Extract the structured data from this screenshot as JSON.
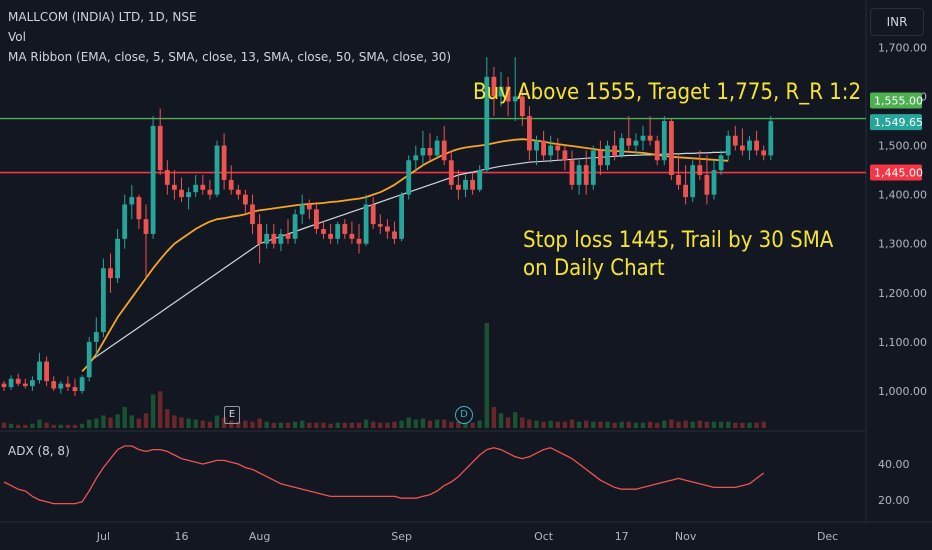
{
  "header": {
    "title": "MALLCOM (INDIA) LTD, 1D, NSE",
    "vol_label": "Vol",
    "ma_label": "MA Ribbon (EMA, close, 5, SMA, close, 13, SMA, close, 50, SMA, close, 30)",
    "currency": "INR"
  },
  "annotations": {
    "buy": "Buy Above 1555, Traget 1,775, R_R 1:2",
    "stop_line1": "Stop loss 1445, Trail by 30 SMA",
    "stop_line2": "on Daily Chart"
  },
  "events": {
    "earnings": "E",
    "dividend": "D"
  },
  "price_tags": {
    "upper": "1,555.00",
    "current": "1,549.65",
    "stop": "1,445.00"
  },
  "colors": {
    "up": "#26a69a",
    "down": "#ef5350",
    "ema": "#f5a623",
    "sma": "#d1d4dc",
    "adx": "#ef5350",
    "buy_line": "#4caf50",
    "stop_line": "#f23645",
    "annotation": "#f5e430"
  },
  "chart_data": [
    {
      "type": "candlestick",
      "name": "price",
      "y_axis_ticks": [
        1000,
        1100,
        1200,
        1300,
        1400,
        1500,
        1600,
        1700
      ],
      "y_axis_labels": [
        "1,000.00",
        "1,100.00",
        "1,200.00",
        "1,300.00",
        "1,400.00",
        "1,500.00",
        "1,600.00",
        "1,700.00"
      ],
      "ylim": [
        950,
        1750
      ],
      "x_axis_labels": [
        "Jul",
        "16",
        "Aug",
        "Sep",
        "Oct",
        "17",
        "Nov",
        "Dec"
      ],
      "x_axis_label_index": [
        14,
        25,
        36,
        56,
        76,
        87,
        96,
        116
      ],
      "horizontal_lines": [
        1555,
        1445
      ],
      "ohlc": [
        [
          1015,
          1020,
          1000,
          1008
        ],
        [
          1008,
          1032,
          1002,
          1025
        ],
        [
          1025,
          1035,
          1010,
          1015
        ],
        [
          1015,
          1025,
          1005,
          1010
        ],
        [
          1010,
          1030,
          1000,
          1022
        ],
        [
          1022,
          1078,
          1015,
          1060
        ],
        [
          1060,
          1070,
          1010,
          1020
        ],
        [
          1020,
          1030,
          1000,
          1005
        ],
        [
          1005,
          1020,
          995,
          1015
        ],
        [
          1015,
          1030,
          1000,
          1008
        ],
        [
          1008,
          1025,
          990,
          1000
        ],
        [
          1000,
          1032,
          995,
          1028
        ],
        [
          1028,
          1110,
          1020,
          1100
        ],
        [
          1100,
          1150,
          1070,
          1120
        ],
        [
          1120,
          1270,
          1110,
          1250
        ],
        [
          1250,
          1280,
          1200,
          1230
        ],
        [
          1230,
          1330,
          1220,
          1310
        ],
        [
          1310,
          1400,
          1290,
          1380
        ],
        [
          1380,
          1420,
          1350,
          1395
        ],
        [
          1395,
          1400,
          1330,
          1350
        ],
        [
          1350,
          1380,
          1230,
          1320
        ],
        [
          1320,
          1560,
          1310,
          1540
        ],
        [
          1540,
          1575,
          1440,
          1450
        ],
        [
          1450,
          1470,
          1400,
          1420
        ],
        [
          1420,
          1450,
          1390,
          1410
        ],
        [
          1410,
          1435,
          1385,
          1395
        ],
        [
          1395,
          1415,
          1370,
          1405
        ],
        [
          1405,
          1440,
          1395,
          1420
        ],
        [
          1420,
          1440,
          1400,
          1410
        ],
        [
          1410,
          1430,
          1390,
          1400
        ],
        [
          1400,
          1510,
          1395,
          1500
        ],
        [
          1500,
          1525,
          1410,
          1430
        ],
        [
          1430,
          1460,
          1400,
          1410
        ],
        [
          1410,
          1420,
          1390,
          1400
        ],
        [
          1400,
          1410,
          1360,
          1380
        ],
        [
          1380,
          1400,
          1320,
          1340
        ],
        [
          1340,
          1360,
          1260,
          1300
        ],
        [
          1300,
          1340,
          1290,
          1320
        ],
        [
          1320,
          1340,
          1290,
          1300
        ],
        [
          1300,
          1330,
          1285,
          1320
        ],
        [
          1320,
          1350,
          1300,
          1310
        ],
        [
          1310,
          1370,
          1300,
          1360
        ],
        [
          1360,
          1400,
          1340,
          1380
        ],
        [
          1380,
          1390,
          1350,
          1370
        ],
        [
          1370,
          1385,
          1320,
          1330
        ],
        [
          1330,
          1345,
          1310,
          1320
        ],
        [
          1320,
          1340,
          1300,
          1310
        ],
        [
          1310,
          1345,
          1300,
          1340
        ],
        [
          1340,
          1350,
          1310,
          1320
        ],
        [
          1320,
          1345,
          1300,
          1310
        ],
        [
          1310,
          1340,
          1280,
          1300
        ],
        [
          1300,
          1400,
          1295,
          1380
        ],
        [
          1380,
          1395,
          1330,
          1340
        ],
        [
          1340,
          1360,
          1320,
          1335
        ],
        [
          1335,
          1350,
          1310,
          1325
        ],
        [
          1325,
          1345,
          1300,
          1310
        ],
        [
          1310,
          1405,
          1305,
          1400
        ],
        [
          1400,
          1480,
          1390,
          1470
        ],
        [
          1470,
          1500,
          1450,
          1480
        ],
        [
          1480,
          1530,
          1460,
          1495
        ],
        [
          1495,
          1525,
          1470,
          1480
        ],
        [
          1480,
          1520,
          1475,
          1510
        ],
        [
          1510,
          1540,
          1460,
          1470
        ],
        [
          1470,
          1490,
          1410,
          1420
        ],
        [
          1420,
          1450,
          1390,
          1410
        ],
        [
          1410,
          1440,
          1395,
          1430
        ],
        [
          1430,
          1445,
          1400,
          1410
        ],
        [
          1410,
          1460,
          1405,
          1450
        ],
        [
          1450,
          1680,
          1445,
          1640
        ],
        [
          1640,
          1660,
          1560,
          1600
        ],
        [
          1600,
          1650,
          1580,
          1620
        ],
        [
          1620,
          1640,
          1560,
          1590
        ],
        [
          1590,
          1680,
          1550,
          1600
        ],
        [
          1600,
          1620,
          1540,
          1560
        ],
        [
          1560,
          1580,
          1470,
          1490
        ],
        [
          1490,
          1520,
          1460,
          1510
        ],
        [
          1510,
          1530,
          1470,
          1480
        ],
        [
          1480,
          1520,
          1465,
          1500
        ],
        [
          1500,
          1515,
          1470,
          1490
        ],
        [
          1490,
          1500,
          1450,
          1470
        ],
        [
          1470,
          1490,
          1410,
          1420
        ],
        [
          1420,
          1470,
          1400,
          1460
        ],
        [
          1460,
          1490,
          1400,
          1420
        ],
        [
          1420,
          1500,
          1410,
          1490
        ],
        [
          1490,
          1510,
          1440,
          1460
        ],
        [
          1460,
          1510,
          1450,
          1500
        ],
        [
          1500,
          1530,
          1470,
          1480
        ],
        [
          1480,
          1525,
          1475,
          1515
        ],
        [
          1515,
          1560,
          1490,
          1500
        ],
        [
          1500,
          1525,
          1480,
          1510
        ],
        [
          1510,
          1540,
          1490,
          1520
        ],
        [
          1520,
          1560,
          1500,
          1510
        ],
        [
          1510,
          1520,
          1460,
          1470
        ],
        [
          1470,
          1560,
          1460,
          1550
        ],
        [
          1550,
          1555,
          1430,
          1440
        ],
        [
          1440,
          1480,
          1410,
          1420
        ],
        [
          1420,
          1460,
          1380,
          1395
        ],
        [
          1395,
          1470,
          1385,
          1460
        ],
        [
          1460,
          1490,
          1430,
          1440
        ],
        [
          1440,
          1480,
          1380,
          1400
        ],
        [
          1400,
          1470,
          1390,
          1450
        ],
        [
          1450,
          1490,
          1440,
          1480
        ],
        [
          1480,
          1530,
          1470,
          1520
        ],
        [
          1520,
          1540,
          1490,
          1500
        ],
        [
          1500,
          1535,
          1480,
          1490
        ],
        [
          1490,
          1520,
          1470,
          1510
        ],
        [
          1510,
          1530,
          1480,
          1490
        ],
        [
          1490,
          1500,
          1470,
          1480
        ],
        [
          1480,
          1560,
          1470,
          1549.65
        ]
      ],
      "volume_relative": [
        0.05,
        0.04,
        0.03,
        0.03,
        0.04,
        0.08,
        0.05,
        0.03,
        0.03,
        0.03,
        0.03,
        0.04,
        0.08,
        0.09,
        0.12,
        0.1,
        0.13,
        0.2,
        0.12,
        0.09,
        0.14,
        0.32,
        0.35,
        0.18,
        0.12,
        0.1,
        0.09,
        0.08,
        0.07,
        0.06,
        0.12,
        0.1,
        0.07,
        0.06,
        0.07,
        0.06,
        0.09,
        0.06,
        0.05,
        0.05,
        0.05,
        0.06,
        0.07,
        0.05,
        0.05,
        0.05,
        0.04,
        0.05,
        0.05,
        0.05,
        0.05,
        0.08,
        0.06,
        0.05,
        0.05,
        0.06,
        0.07,
        0.1,
        0.08,
        0.09,
        0.07,
        0.08,
        0.08,
        0.06,
        0.06,
        0.05,
        0.05,
        0.07,
        1.0,
        0.2,
        0.14,
        0.1,
        0.15,
        0.1,
        0.08,
        0.07,
        0.06,
        0.07,
        0.06,
        0.06,
        0.08,
        0.06,
        0.07,
        0.06,
        0.06,
        0.06,
        0.05,
        0.06,
        0.06,
        0.05,
        0.05,
        0.06,
        0.05,
        0.07,
        0.08,
        0.06,
        0.07,
        0.06,
        0.07,
        0.06,
        0.06,
        0.06,
        0.06,
        0.05,
        0.05,
        0.05,
        0.05,
        0.06
      ],
      "ema_ribbon": [
        1010,
        1012,
        1012,
        1012,
        1012,
        1013,
        1014,
        1015,
        1016,
        1020,
        1028,
        1040,
        1055,
        1075,
        1100,
        1125,
        1150,
        1170,
        1190,
        1210,
        1230,
        1250,
        1268,
        1285,
        1300,
        1310,
        1320,
        1330,
        1338,
        1345,
        1350,
        1352,
        1355,
        1357,
        1360,
        1365,
        1368,
        1370,
        1372,
        1374,
        1376,
        1378,
        1380,
        1381,
        1382,
        1383,
        1385,
        1386,
        1388,
        1390,
        1392,
        1395,
        1400,
        1405,
        1412,
        1420,
        1430,
        1440,
        1450,
        1460,
        1468,
        1475,
        1482,
        1488,
        1493,
        1496,
        1498,
        1500,
        1502,
        1505,
        1508,
        1510,
        1512,
        1513,
        1512,
        1510,
        1508,
        1505,
        1503,
        1501,
        1499,
        1497,
        1495,
        1493,
        1491,
        1490,
        1489,
        1488,
        1487,
        1486,
        1485,
        1483,
        1481,
        1479,
        1477,
        1476,
        1475,
        1474,
        1473,
        1472,
        1471,
        1470,
        1469
      ],
      "sma_ribbon": [
        1015,
        1015,
        1015,
        1015,
        1016,
        1017,
        1018,
        1020,
        1024,
        1030,
        1040,
        1050,
        1060,
        1070,
        1080,
        1090,
        1100,
        1110,
        1120,
        1130,
        1140,
        1150,
        1160,
        1170,
        1180,
        1190,
        1200,
        1210,
        1220,
        1230,
        1240,
        1250,
        1260,
        1270,
        1280,
        1290,
        1300,
        1305,
        1310,
        1315,
        1320,
        1325,
        1330,
        1335,
        1340,
        1345,
        1350,
        1355,
        1360,
        1365,
        1370,
        1375,
        1380,
        1385,
        1390,
        1395,
        1400,
        1405,
        1410,
        1415,
        1420,
        1425,
        1430,
        1435,
        1440,
        1443,
        1446,
        1449,
        1452,
        1455,
        1458,
        1460,
        1462,
        1464,
        1466,
        1467,
        1468,
        1469,
        1470,
        1471,
        1472,
        1473,
        1474,
        1475,
        1476,
        1477,
        1478,
        1479,
        1480,
        1480,
        1481,
        1481,
        1482,
        1482,
        1483,
        1483,
        1484,
        1484,
        1485,
        1485,
        1486,
        1486,
        1487
      ],
      "segments": {
        "ema_start": 11,
        "ema_end": 103,
        "sma_start": 12,
        "sma_end": 103
      }
    },
    {
      "type": "line",
      "name": "ADX (8, 8)",
      "title": "ADX (8, 8)",
      "y_axis_ticks": [
        20,
        40
      ],
      "y_axis_labels": [
        "20.00",
        "40.00"
      ],
      "ylim": [
        12,
        55
      ],
      "values": [
        30,
        28,
        26,
        25,
        22,
        20,
        19,
        18,
        18,
        18,
        18,
        19,
        25,
        32,
        38,
        43,
        48,
        50,
        50,
        48,
        47,
        48,
        48,
        47,
        45,
        43,
        42,
        41,
        40,
        41,
        42,
        42,
        41,
        40,
        38,
        37,
        35,
        33,
        31,
        29,
        28,
        27,
        26,
        25,
        24,
        23,
        22,
        22,
        22,
        22,
        22,
        22,
        22,
        22,
        22,
        22,
        21,
        21,
        21,
        22,
        23,
        25,
        28,
        30,
        33,
        37,
        41,
        45,
        48,
        49,
        48,
        46,
        44,
        43,
        44,
        46,
        48,
        49,
        47,
        45,
        43,
        40,
        37,
        34,
        31,
        29,
        27,
        26,
        26,
        26,
        27,
        28,
        29,
        30,
        31,
        32,
        31,
        30,
        29,
        28,
        27,
        27,
        27,
        27,
        28,
        29,
        32,
        35
      ]
    }
  ]
}
